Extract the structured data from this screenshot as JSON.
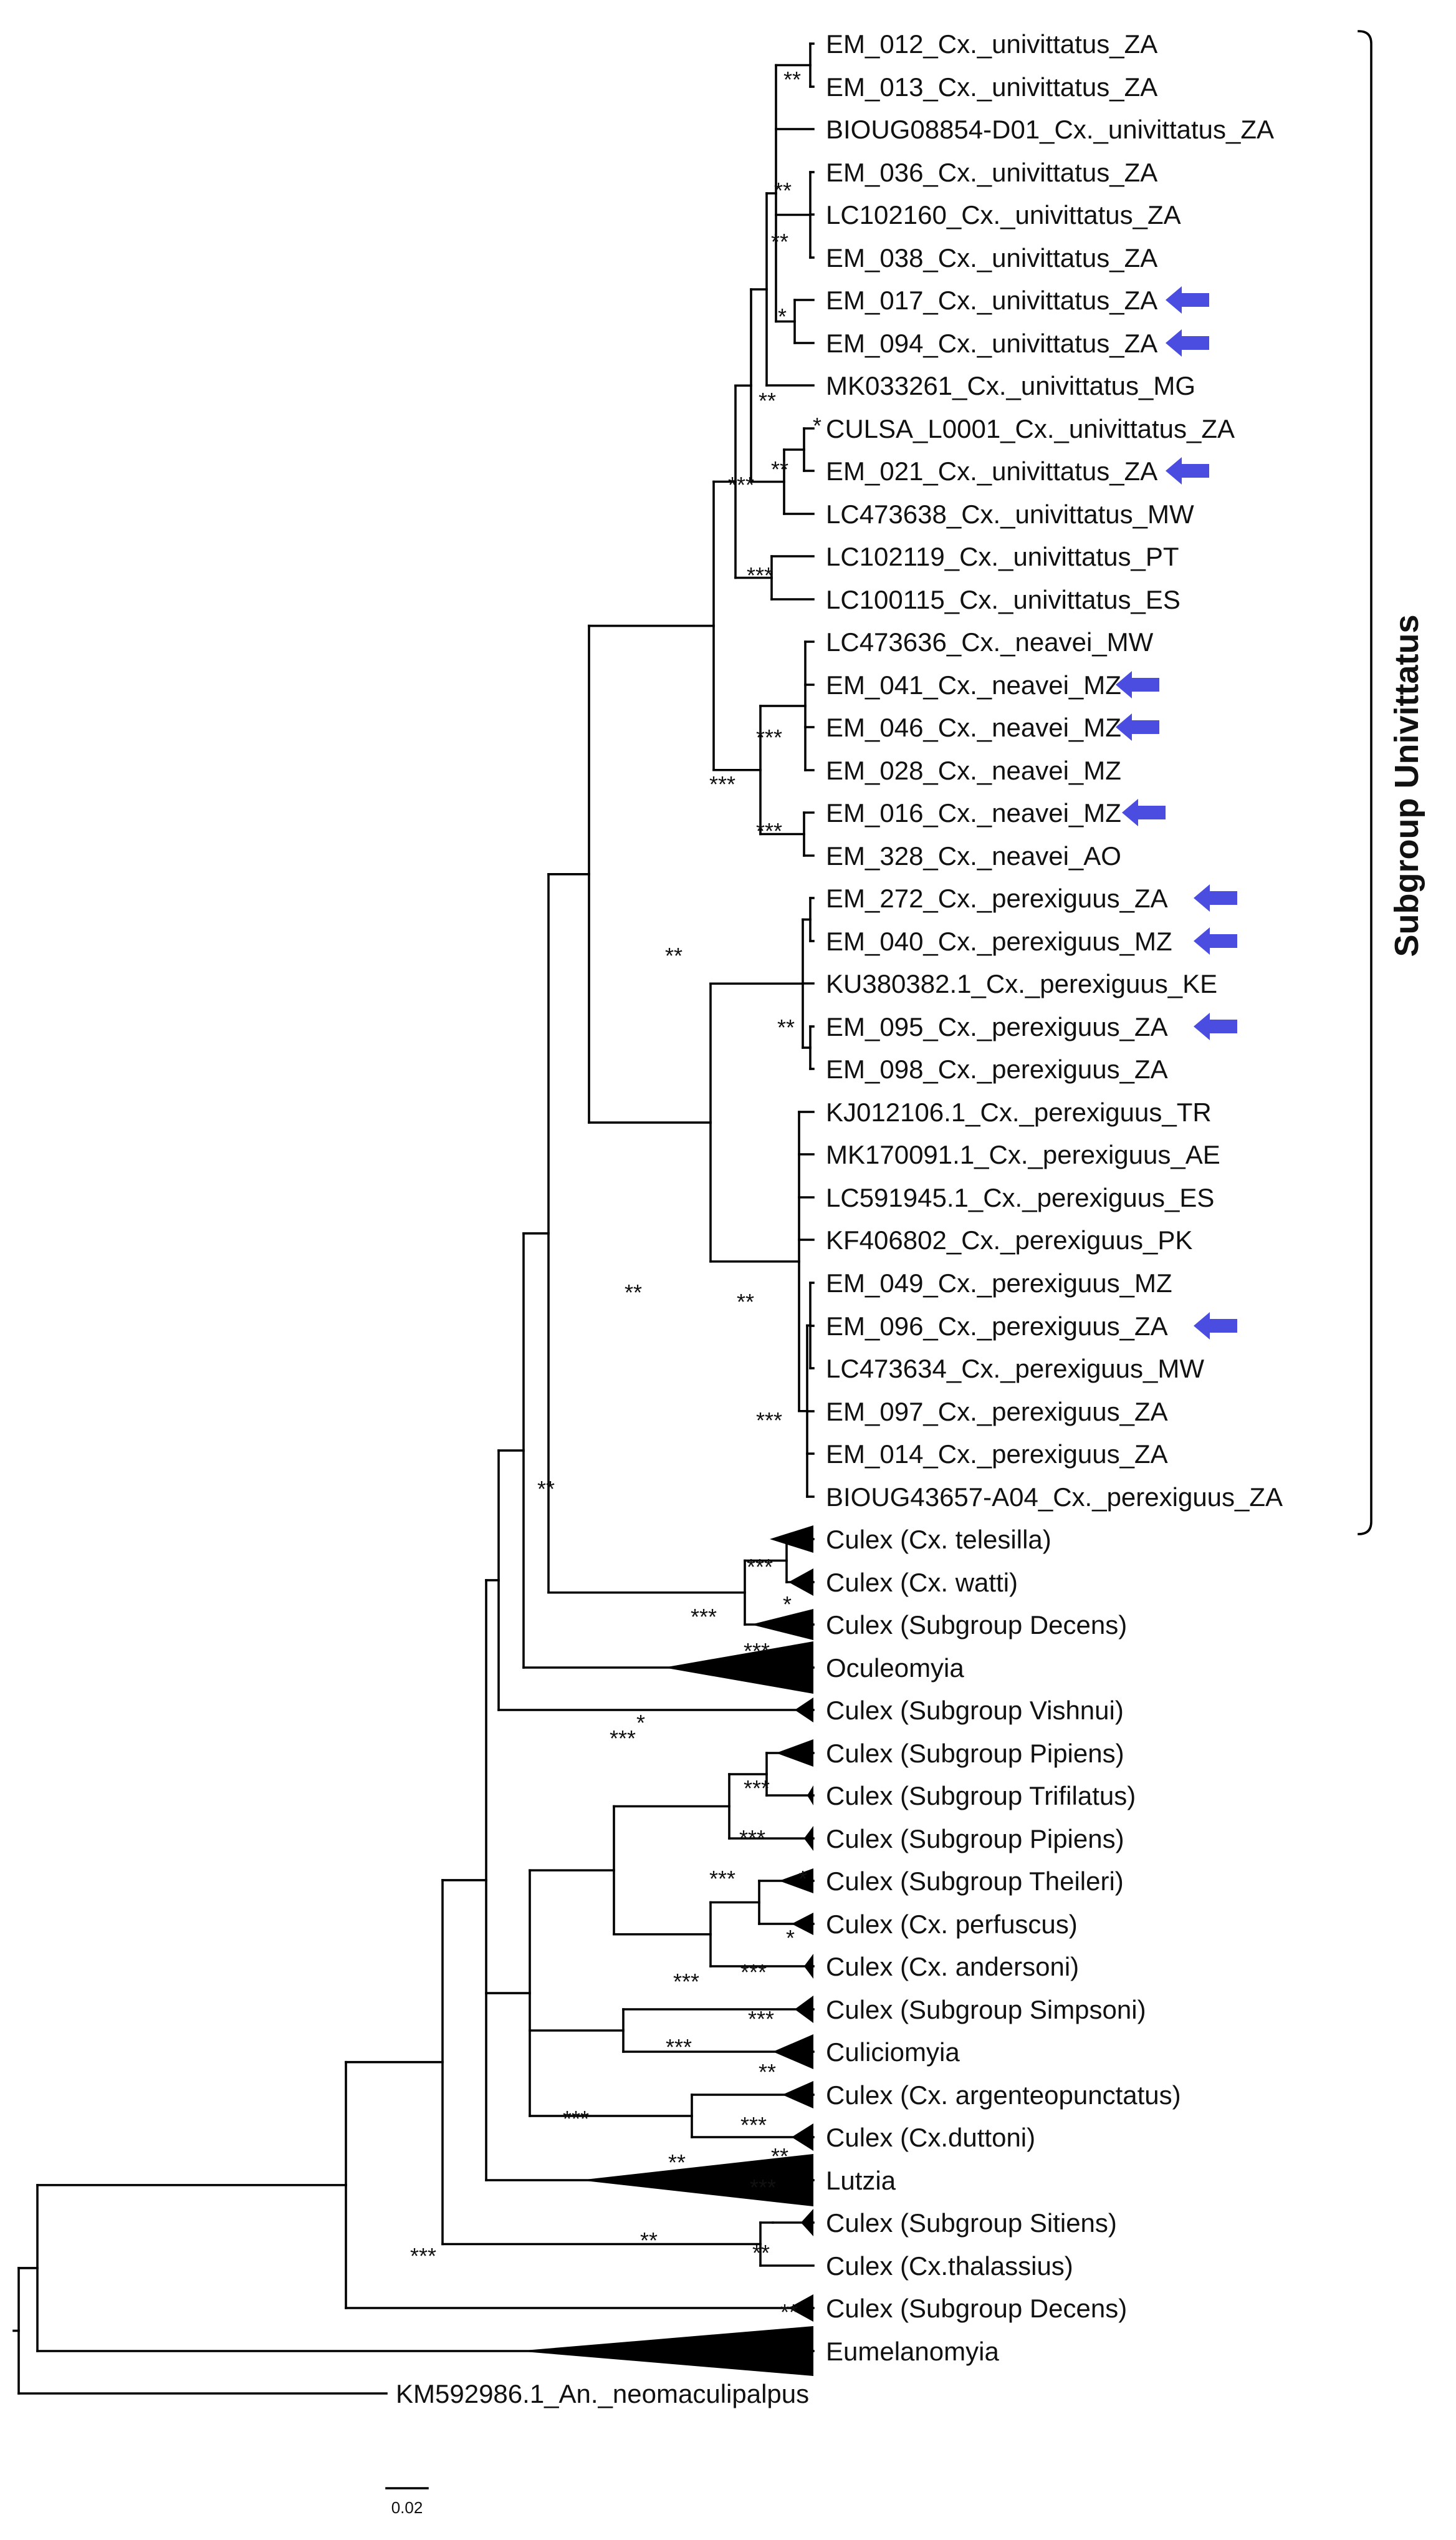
{
  "colors": {
    "branch": "#000000",
    "text": "#111111",
    "arrow": "#4a4de0"
  },
  "subgroup_title": "Subgroup Univittatus",
  "scale_bar_label": "0.02",
  "tips": [
    "EM_012_Cx._univittatus_ZA",
    "EM_013_Cx._univittatus_ZA",
    "BIOUG08854-D01_Cx._univittatus_ZA",
    "EM_036_Cx._univittatus_ZA",
    "LC102160_Cx._univittatus_ZA",
    "EM_038_Cx._univittatus_ZA",
    "EM_017_Cx._univittatus_ZA",
    "EM_094_Cx._univittatus_ZA",
    "MK033261_Cx._univittatus_MG",
    "CULSA_L0001_Cx._univittatus_ZA",
    "EM_021_Cx._univittatus_ZA",
    "LC473638_Cx._univittatus_MW",
    "LC102119_Cx._univittatus_PT",
    "LC100115_Cx._univittatus_ES",
    "LC473636_Cx._neavei_MW",
    "EM_041_Cx._neavei_MZ",
    "EM_046_Cx._neavei_MZ",
    "EM_028_Cx._neavei_MZ",
    "EM_016_Cx._neavei_MZ",
    "EM_328_Cx._neavei_AO",
    "EM_272_Cx._perexiguus_ZA",
    "EM_040_Cx._perexiguus_MZ",
    "KU380382.1_Cx._perexiguus_KE",
    "EM_095_Cx._perexiguus_ZA",
    "EM_098_Cx._perexiguus_ZA",
    "KJ012106.1_Cx._perexiguus_TR",
    "MK170091.1_Cx._perexiguus_AE",
    "LC591945.1_Cx._perexiguus_ES",
    "KF406802_Cx._perexiguus_PK",
    "EM_049_Cx._perexiguus_MZ",
    "EM_096_Cx._perexiguus_ZA",
    "LC473634_Cx._perexiguus_MW",
    "EM_097_Cx._perexiguus_ZA",
    "EM_014_Cx._perexiguus_ZA",
    "BIOUG43657-A04_Cx._perexiguus_ZA",
    "Culex (Cx. telesilla)",
    "Culex (Cx. watti)",
    "Culex (Subgroup Decens)",
    "Oculeomyia",
    "Culex (Subgroup Vishnui)",
    "Culex (Subgroup Pipiens)",
    "Culex (Subgroup Trifilatus)",
    "Culex (Subgroup Pipiens)",
    "Culex (Subgroup Theileri)",
    "Culex (Cx. perfuscus)",
    "Culex (Cx. andersoni)",
    "Culex (Subgroup Simpsoni)",
    "Culiciomyia",
    "Culex (Cx. argenteopunctatus)",
    "Culex (Cx.duttoni)",
    "Lutzia",
    "Culex (Subgroup Sitiens)",
    "Culex (Cx.thalassius)",
    "Culex (Subgroup Decens)",
    "Eumelanomyia",
    "KM592986.1_An._neomaculipalpus"
  ],
  "arrow_icon": "left-arrow-icon",
  "arrow_markers": [
    "EM_017_Cx._univittatus_ZA",
    "EM_094_Cx._univittatus_ZA",
    "EM_021_Cx._univittatus_ZA",
    "EM_041_Cx._neavei_MZ",
    "EM_046_Cx._neavei_MZ",
    "EM_016_Cx._neavei_MZ",
    "EM_272_Cx._perexiguus_ZA",
    "EM_040_Cx._perexiguus_MZ",
    "EM_095_Cx._perexiguus_ZA",
    "EM_096_Cx._perexiguus_ZA"
  ],
  "support_labels": [
    "**",
    "**",
    "**",
    "*",
    "**",
    "*",
    "**",
    "***",
    "***",
    "***",
    "***",
    "***",
    "**",
    "**",
    "**",
    "**",
    "***",
    "**",
    "*",
    "***",
    "***",
    "*",
    "***",
    "***",
    "***",
    "***",
    "*",
    "*",
    "***",
    "***",
    "***",
    "***",
    "**",
    "***",
    "***",
    "**",
    "***",
    "***",
    "**",
    "**",
    "**",
    "***",
    "**"
  ]
}
